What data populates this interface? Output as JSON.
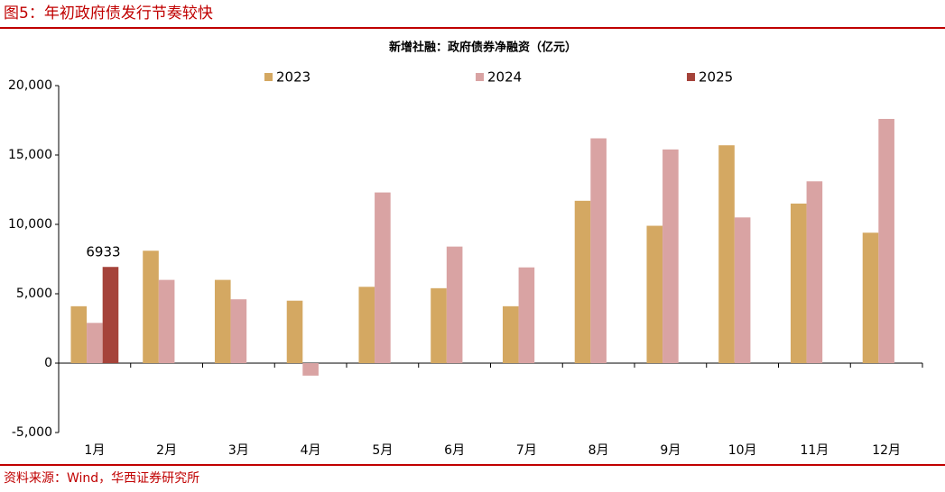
{
  "figure_title": "图5：年初政府债发行节奏较快",
  "source": "资料来源：Wind，华西证券研究所",
  "chart_data": {
    "type": "bar",
    "title": "新增社融：政府债券净融资（亿元）",
    "categories": [
      "1月",
      "2月",
      "3月",
      "4月",
      "5月",
      "6月",
      "7月",
      "8月",
      "9月",
      "10月",
      "11月",
      "12月"
    ],
    "series": [
      {
        "name": "2023",
        "color": "#d4a862",
        "values": [
          4100,
          8100,
          6000,
          4500,
          5500,
          5400,
          4100,
          11700,
          9900,
          15700,
          11500,
          9400
        ]
      },
      {
        "name": "2024",
        "color": "#d9a3a3",
        "values": [
          2900,
          6000,
          4600,
          -900,
          12300,
          8400,
          6900,
          16200,
          15400,
          10500,
          13100,
          17600
        ]
      },
      {
        "name": "2025",
        "color": "#a5433a",
        "values": [
          6933,
          null,
          null,
          null,
          null,
          null,
          null,
          null,
          null,
          null,
          null,
          null
        ]
      }
    ],
    "ylim": [
      -5000,
      20000
    ],
    "yticks": [
      {
        "value": -5000,
        "label": "-5,000"
      },
      0,
      {
        "value": 5000,
        "label": "5,000"
      },
      {
        "value": 10000,
        "label": "10,000"
      },
      {
        "value": 15000,
        "label": "15,000"
      },
      {
        "value": 20000,
        "label": "20,000"
      }
    ],
    "grid": false,
    "legend": "top"
  }
}
